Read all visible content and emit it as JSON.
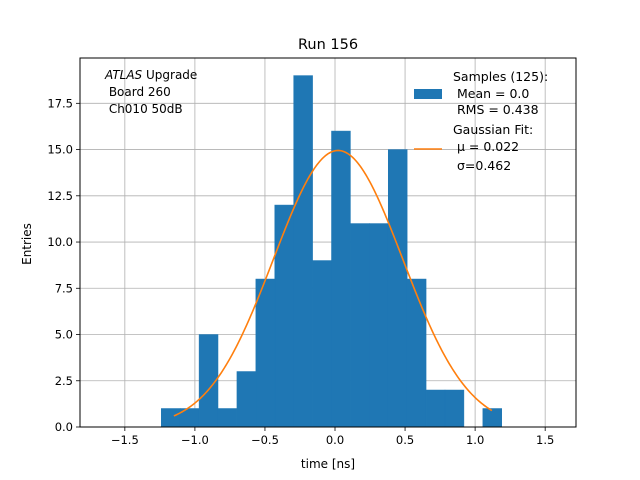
{
  "chart_data": {
    "type": "bar",
    "title": "Run 156",
    "xlabel": "time [ns]",
    "ylabel": "Entries",
    "xlim": [
      -1.82,
      1.72
    ],
    "ylim": [
      0,
      19.95
    ],
    "grid": true,
    "xticks": [
      -1.5,
      -1.0,
      -0.5,
      0.0,
      0.5,
      1.0,
      1.5
    ],
    "xtick_labels": [
      "−1.5",
      "−1.0",
      "−0.5",
      "0.0",
      "0.5",
      "1.0",
      "1.5"
    ],
    "yticks": [
      0,
      2.5,
      5,
      7.5,
      10,
      12.5,
      15,
      17.5
    ],
    "ytick_labels": [
      "0.0",
      "2.5",
      "5.0",
      "7.5",
      "10.0",
      "12.5",
      "15.0",
      "17.5"
    ],
    "histogram": {
      "name": "Samples (125):",
      "color": "#1f77b4",
      "bin_edges": [
        -1.24,
        -1.105,
        -0.97,
        -0.835,
        -0.7,
        -0.565,
        -0.43,
        -0.295,
        -0.16,
        -0.025,
        0.11,
        0.245,
        0.38,
        0.515,
        0.65,
        0.785,
        0.92,
        1.055,
        1.19
      ],
      "counts": [
        1,
        1,
        5,
        1,
        3,
        8,
        12,
        19,
        9,
        16,
        11,
        11,
        15,
        8,
        2,
        2,
        0,
        1
      ]
    },
    "fit": {
      "name": "Gaussian Fit:",
      "color": "#ff7f0e",
      "mu": 0.022,
      "sigma": 0.462,
      "amplitude": 14.95,
      "x_range": [
        -1.15,
        1.12
      ]
    },
    "annotation": {
      "italic": "ATLAS",
      "line1_rest": " Upgrade",
      "line2": " Board 260",
      "line3": " Ch010 50dB"
    },
    "legend": {
      "position": "top-right",
      "hist_lines": [
        "Samples (125):",
        " Mean = 0.0",
        " RMS = 0.438"
      ],
      "fit_lines": [
        "Gaussian Fit:",
        " μ = 0.022",
        " σ=0.462"
      ]
    }
  }
}
